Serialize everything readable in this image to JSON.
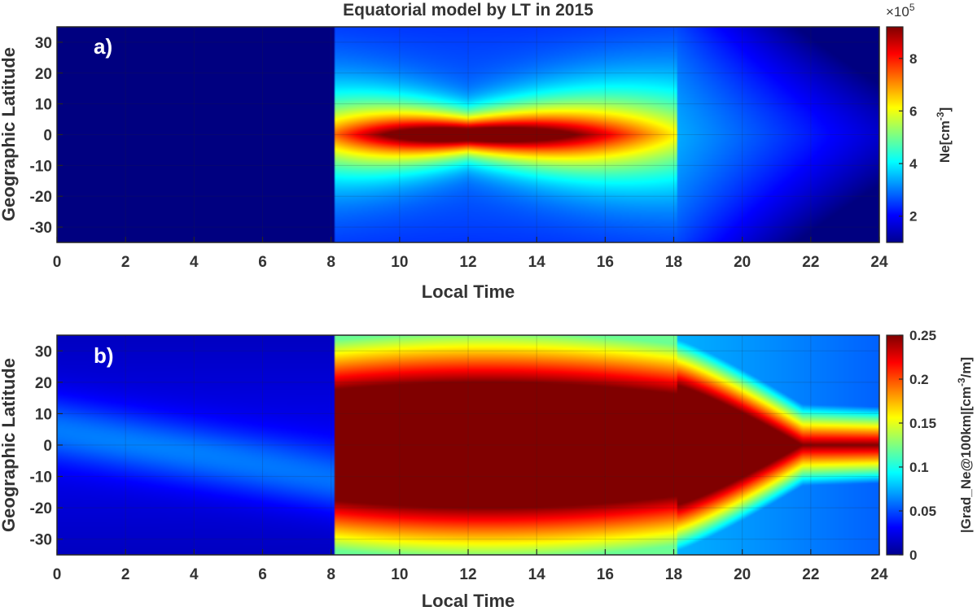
{
  "chart_data": [
    {
      "type": "heatmap",
      "title": "Equatorial model by LT in 2015",
      "panel_label": "a)",
      "xlabel": "Local Time",
      "ylabel": "Geographic Latitude",
      "xlim": [
        0,
        24
      ],
      "ylim": [
        -35,
        35
      ],
      "x_ticks": [
        0,
        2,
        4,
        6,
        8,
        10,
        12,
        14,
        16,
        18,
        20,
        22,
        24
      ],
      "y_ticks": [
        30,
        20,
        10,
        0,
        -10,
        -20,
        -30
      ],
      "grid": true,
      "colormap": "jet",
      "colorbar": {
        "label_main": "Ne[cm",
        "label_sup": "-3",
        "label_end": "]",
        "exponent_base": "×10",
        "exponent_power": "5",
        "range": [
          1.0,
          9.2
        ],
        "ticks": [
          2,
          4,
          6,
          8
        ]
      },
      "model": {
        "night_value": 0.9,
        "day_start_lt": 8.1,
        "day_end_lt": 18.1,
        "peak_value": 9.2,
        "peak_lt": 12
      }
    },
    {
      "type": "heatmap",
      "panel_label": "b)",
      "xlabel": "Local Time",
      "ylabel": "Geographic Latitude",
      "xlim": [
        0,
        24
      ],
      "ylim": [
        -35,
        35
      ],
      "x_ticks": [
        0,
        2,
        4,
        6,
        8,
        10,
        12,
        14,
        16,
        18,
        20,
        22,
        24
      ],
      "y_ticks": [
        30,
        20,
        10,
        0,
        -10,
        -20,
        -30
      ],
      "grid": true,
      "colormap": "jet",
      "colorbar": {
        "label_main": "|Grad_Ne@100km|[cm",
        "label_sup": "-3",
        "label_end": "/m]",
        "range": [
          0,
          0.25
        ],
        "ticks": [
          0,
          0.05,
          0.1,
          0.15,
          0.2,
          0.25
        ],
        "tick_labels": [
          "0",
          "0.05",
          "0.1",
          "0.15",
          "0.2",
          "0.25"
        ]
      },
      "model": {
        "saturation_value": 0.25,
        "day_start_lt": 8.1,
        "day_end_lt": 18.1
      }
    }
  ]
}
